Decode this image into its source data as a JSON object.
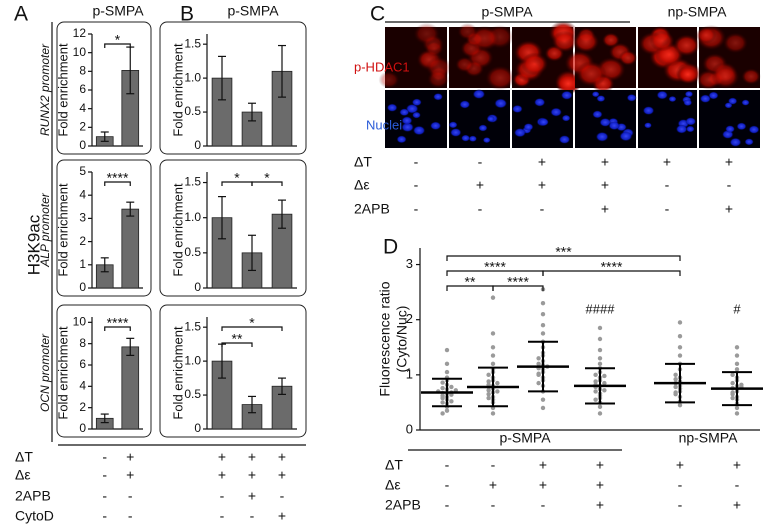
{
  "panel_labels": [
    "A",
    "B",
    "C",
    "D"
  ],
  "row_label": "H3K9ac",
  "chart_data": [
    {
      "type": "bar",
      "title": "p-SMPA",
      "promoter_label": "RUNX2 promoter",
      "ylabel": "Fold enrichment",
      "color": "#6b6b6b",
      "values": [
        1,
        8.1
      ],
      "errors": [
        0.5,
        2.5
      ],
      "ylim": [
        0,
        12
      ],
      "yticks": [
        0,
        2,
        4,
        6,
        8,
        10,
        12
      ],
      "brackets": [
        {
          "text": "*",
          "from": 0,
          "to": 1
        }
      ]
    },
    {
      "type": "bar",
      "promoter_label": "ALP promoter",
      "ylabel": "Fold enrichment",
      "color": "#6b6b6b",
      "values": [
        1,
        3.4
      ],
      "errors": [
        0.3,
        0.3
      ],
      "ylim": [
        0,
        5
      ],
      "yticks": [
        0,
        1,
        2,
        3,
        4,
        5
      ],
      "brackets": [
        {
          "text": "****",
          "from": 0,
          "to": 1
        }
      ]
    },
    {
      "type": "bar",
      "promoter_label": "OCN promoter",
      "ylabel": "Fold enrichment",
      "color": "#6b6b6b",
      "values": [
        1,
        7.7
      ],
      "errors": [
        0.4,
        0.8
      ],
      "ylim": [
        0,
        10.5
      ],
      "yticks": [
        0,
        2,
        4,
        6,
        8,
        10
      ],
      "brackets": [
        {
          "text": "****",
          "from": 0,
          "to": 1
        }
      ]
    },
    {
      "type": "bar",
      "title": "p-SMPA",
      "ylabel": "Fold enrichment",
      "color": "#6b6b6b",
      "values": [
        1.0,
        0.5,
        1.1
      ],
      "errors": [
        0.32,
        0.13,
        0.38
      ],
      "ylim": [
        0,
        1.65
      ],
      "yticks": [
        0,
        0.5,
        {
          "value": 1,
          "label": "1.0"
        },
        1.5
      ],
      "brackets": []
    },
    {
      "type": "bar",
      "ylabel": "Fold enrichment",
      "color": "#6b6b6b",
      "values": [
        1.0,
        0.5,
        1.05
      ],
      "errors": [
        0.3,
        0.25,
        0.2
      ],
      "ylim": [
        0,
        1.65
      ],
      "yticks": [
        0,
        0.5,
        {
          "value": 1,
          "label": "1.0"
        },
        1.5
      ],
      "brackets": [
        {
          "text": "*",
          "from": 0,
          "to": 1
        },
        {
          "text": "*",
          "from": 1,
          "to": 2
        }
      ]
    },
    {
      "type": "bar",
      "ylabel": "Fold enrichment",
      "color": "#6b6b6b",
      "values": [
        1.0,
        0.36,
        0.63
      ],
      "errors": [
        0.25,
        0.12,
        0.12
      ],
      "ylim": [
        0,
        1.65
      ],
      "yticks": [
        0,
        0.5,
        {
          "value": 1,
          "label": "1.0"
        },
        1.5
      ],
      "brackets": [
        {
          "text": "**",
          "from": 0,
          "to": 1
        },
        {
          "text": "*",
          "from": 0,
          "to": 2
        }
      ]
    },
    {
      "type": "beeswarm",
      "ylabel": [
        "Fluorescence ratio",
        "(Cyto/Nuc)"
      ],
      "ylim": [
        0,
        3.3
      ],
      "yticks": [
        0,
        1,
        2,
        3
      ],
      "groups": [
        {
          "mean": 0.68,
          "sd": 0.25,
          "values": [
            0.35,
            0.42,
            0.48,
            0.5,
            0.55,
            0.58,
            0.6,
            0.62,
            0.64,
            0.66,
            0.67,
            0.68,
            0.7,
            0.72,
            0.74,
            0.76,
            0.78,
            0.82,
            0.86,
            0.9,
            0.95,
            1.05,
            1.2,
            1.45,
            0.3,
            0.52
          ]
        },
        {
          "mean": 0.78,
          "sd": 0.35,
          "values": [
            0.3,
            0.4,
            0.5,
            0.55,
            0.6,
            0.65,
            0.68,
            0.72,
            0.75,
            0.78,
            0.8,
            0.82,
            0.85,
            0.9,
            0.95,
            1.0,
            1.05,
            1.1,
            1.2,
            1.35,
            1.5,
            1.75,
            2.4,
            0.58,
            0.7,
            0.88
          ]
        },
        {
          "mean": 1.15,
          "sd": 0.45,
          "values": [
            0.4,
            0.55,
            0.7,
            0.8,
            0.9,
            0.95,
            1.0,
            1.05,
            1.1,
            1.12,
            1.15,
            1.18,
            1.2,
            1.25,
            1.3,
            1.4,
            1.5,
            1.6,
            1.75,
            1.9,
            2.1,
            2.3,
            2.55,
            0.85,
            1.02,
            1.35
          ]
        },
        {
          "mean": 0.8,
          "sd": 0.32,
          "flag": "####",
          "values": [
            0.3,
            0.42,
            0.5,
            0.58,
            0.62,
            0.66,
            0.7,
            0.74,
            0.78,
            0.8,
            0.82,
            0.85,
            0.9,
            0.95,
            1.0,
            1.05,
            1.12,
            1.2,
            1.3,
            1.45,
            1.65,
            1.85,
            0.55,
            0.72,
            0.88,
            0.98
          ]
        },
        {
          "mean": 0.85,
          "sd": 0.35,
          "values": [
            0.45,
            0.52,
            0.6,
            0.65,
            0.7,
            0.75,
            0.8,
            0.85,
            0.88,
            0.92,
            0.95,
            1.0,
            1.1,
            1.2,
            1.35,
            1.5,
            1.7,
            1.95,
            0.68,
            0.78
          ]
        },
        {
          "mean": 0.75,
          "sd": 0.3,
          "flag": "#",
          "values": [
            0.3,
            0.4,
            0.48,
            0.55,
            0.6,
            0.65,
            0.7,
            0.73,
            0.76,
            0.78,
            0.8,
            0.85,
            0.9,
            0.95,
            1.0,
            1.1,
            1.2,
            1.35,
            1.5,
            0.58,
            0.68,
            0.82
          ]
        }
      ],
      "brackets": [
        {
          "text": "**",
          "from": 0,
          "to": 1
        },
        {
          "text": "****",
          "from": 1,
          "to": 2
        },
        {
          "text": "****",
          "from": 0,
          "to": 2
        },
        {
          "text": "****",
          "from": 2,
          "to": 4
        },
        {
          "text": "***",
          "from": 0,
          "to": 4
        }
      ]
    }
  ],
  "image_panel": {
    "header": [
      "p-SMPA",
      "np-SMPA"
    ],
    "rows": [
      "p-HDAC1",
      "Nuclei"
    ]
  },
  "conditions": {
    "A_B": {
      "labels": [
        "ΔT",
        "Δε",
        "2APB",
        "CytoD"
      ],
      "A": [
        [
          "-",
          "+"
        ],
        [
          "-",
          "+"
        ],
        [
          "-",
          "-"
        ],
        [
          "-",
          "-"
        ]
      ],
      "B": [
        [
          "+",
          "+",
          "+"
        ],
        [
          "+",
          "+",
          "+"
        ],
        [
          "-",
          "+",
          "-"
        ],
        [
          "-",
          "-",
          "+"
        ]
      ]
    },
    "C": {
      "labels": [
        "ΔT",
        "Δε",
        "2APB"
      ],
      "rows": [
        [
          "-",
          "-",
          "+",
          "+",
          "+",
          "+"
        ],
        [
          "-",
          "+",
          "+",
          "+",
          "-",
          "-"
        ],
        [
          "-",
          "-",
          "-",
          "+",
          "-",
          "+"
        ]
      ]
    },
    "D": {
      "groups": [
        "p-SMPA",
        "np-SMPA"
      ],
      "labels": [
        "ΔT",
        "Δε",
        "2APB"
      ],
      "rows": [
        [
          "-",
          "-",
          "+",
          "+",
          "+",
          "+"
        ],
        [
          "-",
          "+",
          "+",
          "+",
          "-",
          "-"
        ],
        [
          "-",
          "-",
          "-",
          "+",
          "-",
          "+"
        ]
      ]
    }
  }
}
